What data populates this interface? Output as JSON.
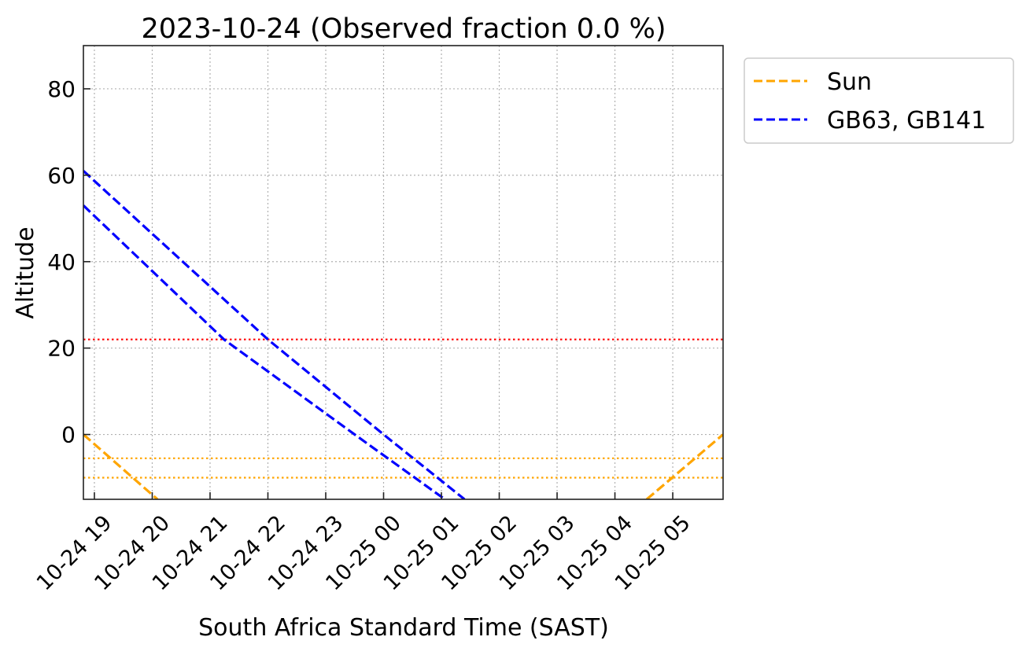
{
  "chart_data": {
    "type": "line",
    "title": "2023-10-24 (Observed fraction 0.0 %)",
    "xlabel": "South Africa Standard Time (SAST)",
    "ylabel": "Altitude",
    "x_units": "hours since 2023-10-24 00:00 SAST",
    "xlim": [
      18.81,
      29.87
    ],
    "ylim": [
      -15,
      90
    ],
    "grid": true,
    "x_ticks": [
      {
        "value": 19,
        "label": "10-24 19"
      },
      {
        "value": 20,
        "label": "10-24 20"
      },
      {
        "value": 21,
        "label": "10-24 21"
      },
      {
        "value": 22,
        "label": "10-24 22"
      },
      {
        "value": 23,
        "label": "10-24 23"
      },
      {
        "value": 24,
        "label": "10-25 00"
      },
      {
        "value": 25,
        "label": "10-25 01"
      },
      {
        "value": 26,
        "label": "10-25 02"
      },
      {
        "value": 27,
        "label": "10-25 03"
      },
      {
        "value": 28,
        "label": "10-25 04"
      },
      {
        "value": 29,
        "label": "10-25 05"
      }
    ],
    "y_ticks": [
      {
        "value": 0,
        "label": "0"
      },
      {
        "value": 20,
        "label": "20"
      },
      {
        "value": 40,
        "label": "40"
      },
      {
        "value": 60,
        "label": "60"
      },
      {
        "value": 80,
        "label": "80"
      }
    ],
    "series": [
      {
        "name": "Sun",
        "legend": true,
        "color": "#FFA500",
        "style": "dashed",
        "segments": [
          [
            [
              18.81,
              0
            ],
            [
              20.09,
              -15
            ]
          ],
          [
            [
              28.55,
              -15
            ],
            [
              29.87,
              0
            ]
          ]
        ]
      },
      {
        "name": "GB63, GB141",
        "legend": true,
        "color": "#0000FF",
        "style": "dashed",
        "segments": [
          [
            [
              18.81,
              61
            ],
            [
              22.0,
              22
            ],
            [
              24.0,
              0
            ],
            [
              25.4,
              -15
            ]
          ]
        ]
      },
      {
        "name": "GB63, GB141 (2)",
        "legend": false,
        "color": "#0000FF",
        "style": "dashed",
        "segments": [
          [
            [
              18.81,
              53
            ],
            [
              21.24,
              22
            ],
            [
              23.5,
              0
            ],
            [
              25.06,
              -15
            ]
          ]
        ]
      }
    ],
    "hlines": [
      {
        "y": 22,
        "color": "#FF0000",
        "style": "dotted"
      },
      {
        "y": -5.5,
        "color": "#FFA500",
        "style": "dotted"
      },
      {
        "y": -10,
        "color": "#FFA500",
        "style": "dotted"
      }
    ],
    "legend_position": "outside-top-right",
    "legend": [
      "Sun",
      "GB63, GB141"
    ]
  }
}
